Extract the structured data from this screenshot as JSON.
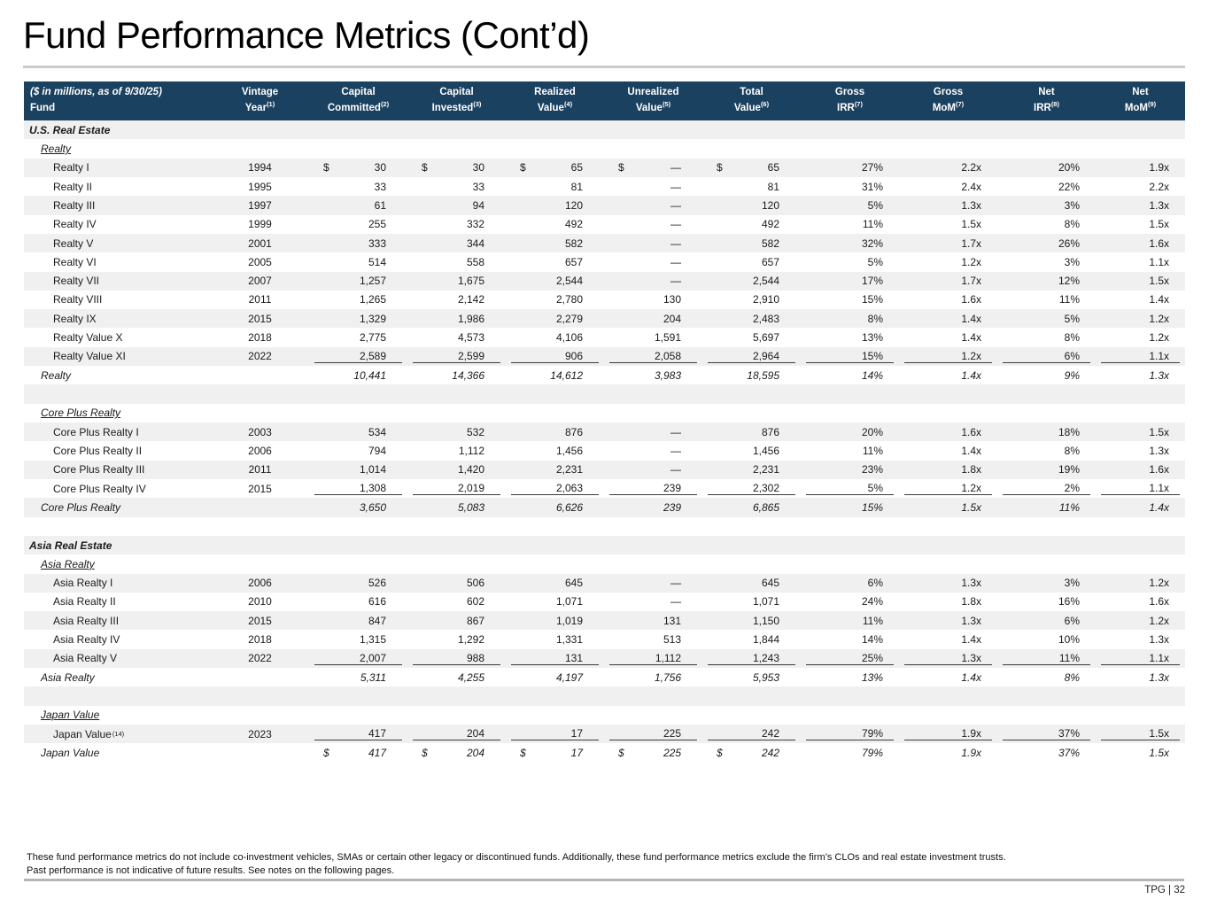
{
  "page": {
    "title": "Fund Performance Metrics (Cont’d)",
    "footnote1": "These fund performance metrics do not include co-investment vehicles, SMAs or certain other legacy or discontinued funds. Additionally, these fund performance metrics exclude the firm’s CLOs and real estate investment trusts.",
    "footnote2": "Past performance is not indicative of future results. See notes on the following pages.",
    "page_tag": "TPG | 32"
  },
  "colors": {
    "header_bg": "#1B4160",
    "header_text": "#FFFFFF",
    "row_stripe": "#F0F0F0",
    "total_rule": "#3C3C3C",
    "divider_gray": "#CBCBCB",
    "footer_rule": "#B5B5B5"
  },
  "table": {
    "header": {
      "first": {
        "line1": "($ in millions, as of 9/30/25)",
        "line2": "Fund"
      },
      "columns": [
        {
          "line1": "Vintage",
          "line2": "Year",
          "sup": "(1)"
        },
        {
          "line1": "Capital",
          "line2": "Committed",
          "sup": "(2)"
        },
        {
          "line1": "Capital",
          "line2": "Invested",
          "sup": "(3)"
        },
        {
          "line1": "Realized",
          "line2": "Value",
          "sup": "(4)"
        },
        {
          "line1": "Unrealized",
          "line2": "Value",
          "sup": "(5)"
        },
        {
          "line1": "Total",
          "line2": "Value",
          "sup": "(6)"
        },
        {
          "line1": "Gross",
          "line2": "IRR",
          "sup": "(7)"
        },
        {
          "line1": "Gross",
          "line2": "MoM",
          "sup": "(7)"
        },
        {
          "line1": "Net",
          "line2": "IRR",
          "sup": "(8)"
        },
        {
          "line1": "Net",
          "line2": "MoM",
          "sup": "(9)"
        }
      ]
    },
    "rows": [
      {
        "t": "section",
        "name": "U.S. Real Estate"
      },
      {
        "t": "sub",
        "name": "Realty"
      },
      {
        "t": "fund",
        "name": "Realty I",
        "vintage": "1994",
        "dollar": true,
        "v": [
          "30",
          "30",
          "65",
          "—",
          "65",
          "27%",
          "2.2x",
          "20%",
          "1.9x"
        ]
      },
      {
        "t": "fund",
        "name": "Realty II",
        "vintage": "1995",
        "v": [
          "33",
          "33",
          "81",
          "—",
          "81",
          "31%",
          "2.4x",
          "22%",
          "2.2x"
        ]
      },
      {
        "t": "fund",
        "name": "Realty III",
        "vintage": "1997",
        "v": [
          "61",
          "94",
          "120",
          "—",
          "120",
          "5%",
          "1.3x",
          "3%",
          "1.3x"
        ]
      },
      {
        "t": "fund",
        "name": "Realty IV",
        "vintage": "1999",
        "v": [
          "255",
          "332",
          "492",
          "—",
          "492",
          "11%",
          "1.5x",
          "8%",
          "1.5x"
        ]
      },
      {
        "t": "fund",
        "name": "Realty V",
        "vintage": "2001",
        "v": [
          "333",
          "344",
          "582",
          "—",
          "582",
          "32%",
          "1.7x",
          "26%",
          "1.6x"
        ]
      },
      {
        "t": "fund",
        "name": "Realty VI",
        "vintage": "2005",
        "v": [
          "514",
          "558",
          "657",
          "—",
          "657",
          "5%",
          "1.2x",
          "3%",
          "1.1x"
        ]
      },
      {
        "t": "fund",
        "name": "Realty VII",
        "vintage": "2007",
        "v": [
          "1,257",
          "1,675",
          "2,544",
          "—",
          "2,544",
          "17%",
          "1.7x",
          "12%",
          "1.5x"
        ]
      },
      {
        "t": "fund",
        "name": "Realty VIII",
        "vintage": "2011",
        "v": [
          "1,265",
          "2,142",
          "2,780",
          "130",
          "2,910",
          "15%",
          "1.6x",
          "11%",
          "1.4x"
        ]
      },
      {
        "t": "fund",
        "name": "Realty IX",
        "vintage": "2015",
        "v": [
          "1,329",
          "1,986",
          "2,279",
          "204",
          "2,483",
          "8%",
          "1.4x",
          "5%",
          "1.2x"
        ]
      },
      {
        "t": "fund",
        "name": "Realty Value X",
        "vintage": "2018",
        "v": [
          "2,775",
          "4,573",
          "4,106",
          "1,591",
          "5,697",
          "13%",
          "1.4x",
          "8%",
          "1.2x"
        ]
      },
      {
        "t": "fund",
        "name": "Realty Value XI",
        "vintage": "2022",
        "rule": true,
        "v": [
          "2,589",
          "2,599",
          "906",
          "2,058",
          "2,964",
          "15%",
          "1.2x",
          "6%",
          "1.1x"
        ]
      },
      {
        "t": "total",
        "name": "Realty",
        "v": [
          "10,441",
          "14,366",
          "14,612",
          "3,983",
          "18,595",
          "14%",
          "1.4x",
          "9%",
          "1.3x"
        ]
      },
      {
        "t": "blank"
      },
      {
        "t": "sub",
        "name": "Core Plus Realty"
      },
      {
        "t": "fund",
        "name": "Core Plus Realty I",
        "vintage": "2003",
        "v": [
          "534",
          "532",
          "876",
          "—",
          "876",
          "20%",
          "1.6x",
          "18%",
          "1.5x"
        ]
      },
      {
        "t": "fund",
        "name": "Core Plus Realty II",
        "vintage": "2006",
        "v": [
          "794",
          "1,112",
          "1,456",
          "—",
          "1,456",
          "11%",
          "1.4x",
          "8%",
          "1.3x"
        ]
      },
      {
        "t": "fund",
        "name": "Core Plus Realty III",
        "vintage": "2011",
        "v": [
          "1,014",
          "1,420",
          "2,231",
          "—",
          "2,231",
          "23%",
          "1.8x",
          "19%",
          "1.6x"
        ]
      },
      {
        "t": "fund",
        "name": "Core Plus Realty IV",
        "vintage": "2015",
        "rule": true,
        "v": [
          "1,308",
          "2,019",
          "2,063",
          "239",
          "2,302",
          "5%",
          "1.2x",
          "2%",
          "1.1x"
        ]
      },
      {
        "t": "total",
        "name": "Core Plus Realty",
        "v": [
          "3,650",
          "5,083",
          "6,626",
          "239",
          "6,865",
          "15%",
          "1.5x",
          "11%",
          "1.4x"
        ]
      },
      {
        "t": "blank"
      },
      {
        "t": "section",
        "name": "Asia Real Estate"
      },
      {
        "t": "sub",
        "name": "Asia Realty"
      },
      {
        "t": "fund",
        "name": "Asia Realty I",
        "vintage": "2006",
        "v": [
          "526",
          "506",
          "645",
          "—",
          "645",
          "6%",
          "1.3x",
          "3%",
          "1.2x"
        ]
      },
      {
        "t": "fund",
        "name": "Asia Realty II",
        "vintage": "2010",
        "v": [
          "616",
          "602",
          "1,071",
          "—",
          "1,071",
          "24%",
          "1.8x",
          "16%",
          "1.6x"
        ]
      },
      {
        "t": "fund",
        "name": "Asia Realty III",
        "vintage": "2015",
        "v": [
          "847",
          "867",
          "1,019",
          "131",
          "1,150",
          "11%",
          "1.3x",
          "6%",
          "1.2x"
        ]
      },
      {
        "t": "fund",
        "name": "Asia Realty IV",
        "vintage": "2018",
        "v": [
          "1,315",
          "1,292",
          "1,331",
          "513",
          "1,844",
          "14%",
          "1.4x",
          "10%",
          "1.3x"
        ]
      },
      {
        "t": "fund",
        "name": "Asia Realty V",
        "vintage": "2022",
        "rule": true,
        "v": [
          "2,007",
          "988",
          "131",
          "1,112",
          "1,243",
          "25%",
          "1.3x",
          "11%",
          "1.1x"
        ]
      },
      {
        "t": "total",
        "name": "Asia Realty",
        "v": [
          "5,311",
          "4,255",
          "4,197",
          "1,756",
          "5,953",
          "13%",
          "1.4x",
          "8%",
          "1.3x"
        ]
      },
      {
        "t": "blank"
      },
      {
        "t": "sub",
        "name": "Japan Value"
      },
      {
        "t": "fund",
        "name": "Japan Value",
        "sup": "(14)",
        "vintage": "2023",
        "rule": true,
        "v": [
          "417",
          "204",
          "17",
          "225",
          "242",
          "79%",
          "1.9x",
          "37%",
          "1.5x"
        ]
      },
      {
        "t": "total",
        "name": "Japan Value",
        "dollar": true,
        "v": [
          "417",
          "204",
          "17",
          "225",
          "242",
          "79%",
          "1.9x",
          "37%",
          "1.5x"
        ]
      }
    ]
  }
}
